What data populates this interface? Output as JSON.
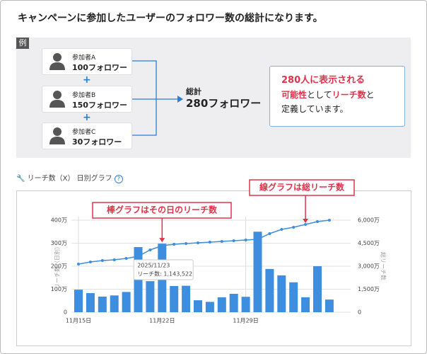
{
  "header": {
    "title": "キャンペーンに参加したユーザーのフォロワー数の総計になります。"
  },
  "example": {
    "tag": "例",
    "participants": [
      {
        "name": "参加者A",
        "followers": "100フォロワー"
      },
      {
        "name": "参加者B",
        "followers": "150フォロワー"
      },
      {
        "name": "参加者C",
        "followers": "30フォロワー"
      }
    ],
    "plus": "+",
    "total_label": "総計",
    "total_value": "280フォロワー",
    "note": [
      [
        {
          "text": "280人に表示される",
          "highlight": true
        }
      ],
      [
        {
          "text": "可能性",
          "highlight": true
        },
        {
          "text": "として",
          "highlight": false
        },
        {
          "text": "リーチ数",
          "highlight": true
        },
        {
          "text": "と",
          "highlight": false
        }
      ],
      [
        {
          "text": "定義しています。",
          "highlight": false
        }
      ]
    ]
  },
  "section": {
    "title": "リーチ数（X） 日別グラフ",
    "help": "?"
  },
  "chart_data": {
    "type": "bar-line",
    "categories": [
      "11月15日",
      null,
      null,
      null,
      null,
      null,
      null,
      "11月22日",
      null,
      null,
      null,
      null,
      null,
      null,
      "11月29日",
      null,
      null,
      null,
      null,
      null,
      null,
      null
    ],
    "series": [
      {
        "name": "リーチ数（日別）",
        "type": "bar",
        "color": "#3d8ede",
        "values": [
          98,
          83,
          68,
          73,
          88,
          283,
          135,
          298,
          114,
          115,
          52,
          45,
          65,
          80,
          67,
          350,
          188,
          160,
          130,
          65,
          200,
          55
        ]
      },
      {
        "name": "総リーチ数",
        "type": "line",
        "axis": "y2",
        "color": "#3d8ede",
        "values": [
          3138,
          3277,
          3369,
          3415,
          3508,
          3646,
          4062,
          4338,
          4431,
          4477,
          4523,
          4569,
          4615,
          4662,
          4708,
          4754,
          5123,
          5400,
          5538,
          5723,
          5908,
          6000
        ]
      }
    ],
    "ylabel": "リーチ数（日別）",
    "y2label": "総リーチ数",
    "ylim": [
      0,
      400
    ],
    "yticks": [
      0,
      {
        "value": 100,
        "label": "100万"
      },
      {
        "value": 200,
        "label": "200万"
      },
      {
        "value": 300,
        "label": "300万"
      },
      {
        "value": 400,
        "label": "400万"
      }
    ],
    "y2lim": [
      0,
      6000
    ],
    "y2ticks": [
      0,
      {
        "value": 1500,
        "label": "1,500万"
      },
      {
        "value": 3000,
        "label": "3,000万"
      },
      {
        "value": 4500,
        "label": "4,500万"
      },
      {
        "value": 6000,
        "label": "6,000万"
      }
    ],
    "grid": true,
    "tooltip": {
      "category": 8,
      "date": "2025/11/23",
      "text": "リーチ数: 1,143,522"
    },
    "annotations": [
      {
        "text": "棒グラフはその日のリーチ数",
        "target": 7,
        "series": 0
      },
      {
        "text": "線グラフは総リーチ数",
        "target": 19,
        "series": 1
      }
    ]
  }
}
